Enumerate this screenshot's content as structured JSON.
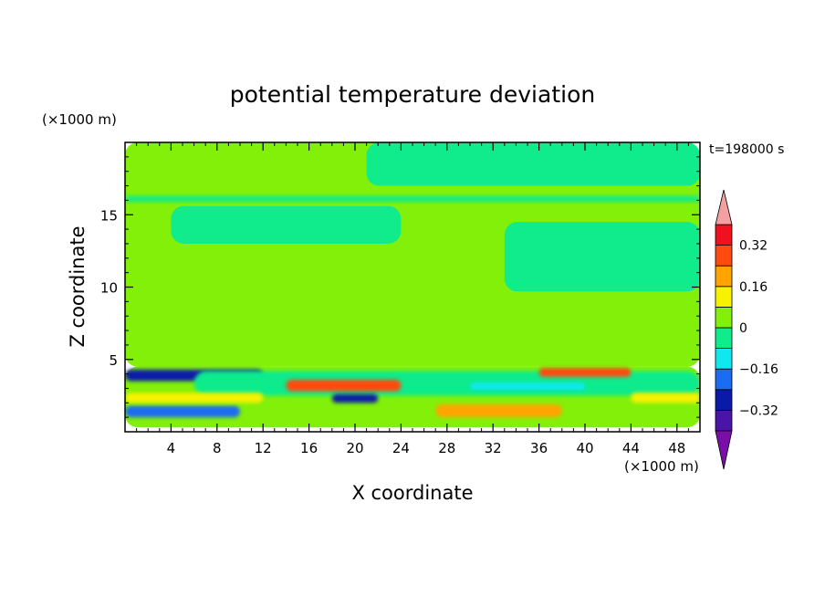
{
  "chart_data": {
    "type": "heatmap",
    "title": "potential temperature deviation",
    "xlabel": "X coordinate",
    "ylabel": "Z coordinate",
    "x_unit": "(×1000 m)",
    "y_unit": "(×1000 m)",
    "time_label": "t=198000 s",
    "xlim": [
      0,
      50
    ],
    "ylim": [
      0,
      20
    ],
    "x_ticks": [
      4,
      8,
      12,
      16,
      20,
      24,
      28,
      32,
      36,
      40,
      44,
      48
    ],
    "y_ticks": [
      5,
      10,
      15
    ],
    "colorbar": {
      "levels": [
        -0.4,
        -0.32,
        -0.24,
        -0.16,
        -0.08,
        0,
        0.08,
        0.16,
        0.24,
        0.32,
        0.4
      ],
      "tick_labels": [
        {
          "value": 0.32,
          "label": "0.32"
        },
        {
          "value": 0.16,
          "label": "0.16"
        },
        {
          "value": 0,
          "label": "0"
        },
        {
          "value": -0.16,
          "label": "−0.16"
        },
        {
          "value": -0.32,
          "label": "−0.32"
        }
      ],
      "colors": [
        "#7a0fa8",
        "#4a14a6",
        "#0a1aa8",
        "#1a6cf0",
        "#10e8f0",
        "#10eb8c",
        "#82f008",
        "#f7f200",
        "#ffa400",
        "#ff4a10",
        "#f01020",
        "#f5a0a0"
      ]
    },
    "regions": [
      {
        "x": [
          0,
          50
        ],
        "z": [
          0.3,
          4.5
        ],
        "value": 0.04
      },
      {
        "x": [
          0,
          50
        ],
        "z": [
          4.5,
          20
        ],
        "value": 0.04
      },
      {
        "x": [
          4,
          24
        ],
        "z": [
          13,
          15.6
        ],
        "value": -0.04
      },
      {
        "x": [
          33,
          50
        ],
        "z": [
          9.7,
          14.5
        ],
        "value": -0.04
      },
      {
        "x": [
          21,
          50
        ],
        "z": [
          17,
          20
        ],
        "value": -0.04
      },
      {
        "x": [
          0,
          50
        ],
        "z": [
          15.9,
          16.3
        ],
        "value": -0.04
      },
      {
        "x": [
          0,
          12
        ],
        "z": [
          3.5,
          4.3
        ],
        "value": -0.25
      },
      {
        "x": [
          6,
          50
        ],
        "z": [
          2.5,
          4.2
        ],
        "value": -0.06
      },
      {
        "x": [
          14,
          24
        ],
        "z": [
          2.8,
          3.6
        ],
        "value": 0.3
      },
      {
        "x": [
          36,
          44
        ],
        "z": [
          3.8,
          4.4
        ],
        "value": 0.3
      },
      {
        "x": [
          27,
          38
        ],
        "z": [
          1.0,
          1.9
        ],
        "value": 0.22
      },
      {
        "x": [
          0,
          10
        ],
        "z": [
          1.0,
          1.8
        ],
        "value": -0.2
      },
      {
        "x": [
          0,
          12
        ],
        "z": [
          2.0,
          2.7
        ],
        "value": 0.15
      },
      {
        "x": [
          18,
          22
        ],
        "z": [
          2.0,
          2.6
        ],
        "value": -0.3
      },
      {
        "x": [
          30,
          40
        ],
        "z": [
          2.9,
          3.4
        ],
        "value": -0.14
      },
      {
        "x": [
          44,
          50
        ],
        "z": [
          2.0,
          2.7
        ],
        "value": 0.12
      }
    ]
  }
}
